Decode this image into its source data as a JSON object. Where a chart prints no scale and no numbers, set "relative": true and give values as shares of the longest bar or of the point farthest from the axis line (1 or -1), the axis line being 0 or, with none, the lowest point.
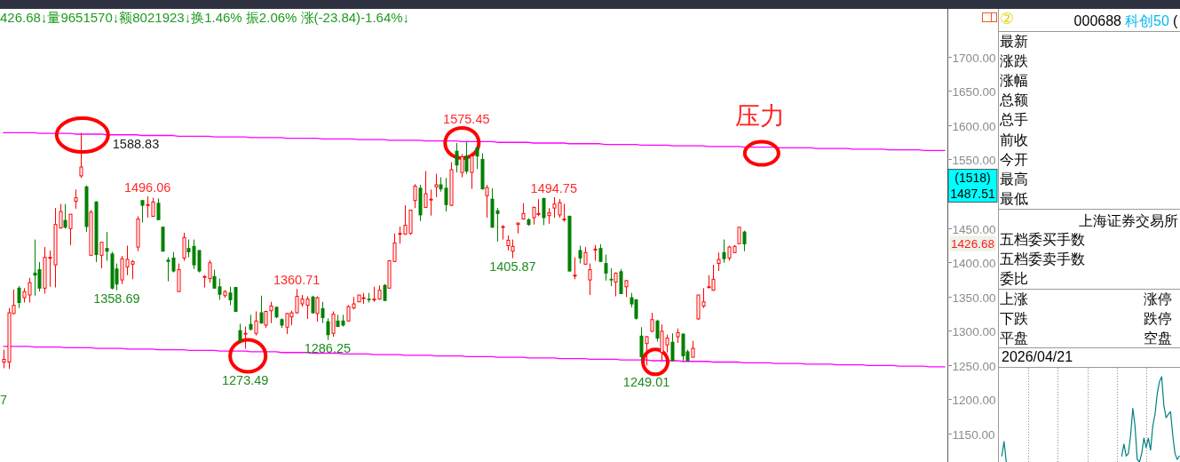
{
  "chart_data": [
    {
      "type": "candlestick",
      "title": "426.68↓量9651570↓额8021923↓换1.46% 振2.06% 涨(-23.84)-1.64%↓",
      "categories": [
        null,
        null,
        null,
        null,
        null,
        null,
        null,
        null,
        null,
        null,
        null,
        null,
        null,
        null,
        null,
        null,
        null,
        null,
        null,
        null,
        null,
        null,
        null,
        null,
        null,
        null,
        null,
        null,
        null,
        null,
        null,
        null,
        null,
        null,
        null,
        null,
        null,
        null,
        null,
        null,
        null,
        null,
        null,
        null,
        null,
        null,
        null,
        null,
        null,
        null,
        null,
        null,
        null,
        null,
        null,
        null,
        null,
        null,
        null,
        null,
        null,
        null,
        null,
        null,
        null,
        null,
        null,
        null,
        null,
        null,
        null,
        null,
        null,
        null,
        null,
        null,
        null,
        null,
        null,
        null,
        null,
        null,
        null,
        null,
        null,
        null,
        null,
        null,
        null,
        null,
        null,
        null,
        null,
        null,
        null,
        null,
        null,
        null,
        null,
        null,
        null,
        null,
        null,
        null,
        null,
        null,
        null,
        null,
        null,
        null,
        null,
        null,
        null,
        null,
        null,
        null,
        null,
        null,
        null,
        null,
        null,
        null,
        null,
        null,
        null,
        null,
        null,
        null,
        null,
        null,
        null,
        null,
        null,
        null,
        null,
        null,
        null,
        null,
        null,
        null,
        null,
        null,
        null,
        null,
        null,
        null,
        null,
        null,
        null,
        null,
        null,
        null,
        null,
        null,
        null,
        null,
        null,
        null,
        null,
        null,
        null,
        null,
        null,
        null,
        null,
        null,
        null,
        null,
        null,
        null,
        null,
        null,
        null,
        null,
        null,
        null,
        null,
        null,
        null,
        null,
        null,
        null,
        null,
        null
      ],
      "ohlc": [
        [
          1254,
          1272,
          1245,
          1258
        ],
        [
          1254,
          1333,
          1244,
          1326
        ],
        [
          1325,
          1360,
          1324,
          1337
        ],
        [
          1362,
          1365,
          1333,
          1341
        ],
        [
          1348,
          1362,
          1341,
          1357
        ],
        [
          1352,
          1377,
          1341,
          1370
        ],
        [
          1384,
          1433,
          1351,
          1381
        ],
        [
          1389,
          1400,
          1357,
          1362
        ],
        [
          1362,
          1422,
          1354,
          1407
        ],
        [
          1406,
          1417,
          1364,
          1407
        ],
        [
          1396,
          1479,
          1363,
          1455
        ],
        [
          1450,
          1485,
          1449,
          1474
        ],
        [
          1461,
          1485,
          1449,
          1451
        ],
        [
          1449,
          1470,
          1425,
          1470
        ],
        [
          1489,
          1506,
          1478,
          1494
        ],
        [
          1526,
          1588.83,
          1523,
          1539
        ],
        [
          1510,
          1512,
          1444,
          1452
        ],
        [
          1410,
          1476,
          1410,
          1473
        ],
        [
          1488,
          1489,
          1400,
          1411
        ],
        [
          1410,
          1429,
          1391,
          1429
        ],
        [
          1420,
          1444,
          1402,
          1416
        ],
        [
          1412,
          1415,
          1360,
          1362
        ],
        [
          1390,
          1398,
          1358.69,
          1368
        ],
        [
          1374,
          1409,
          1368,
          1405
        ],
        [
          1393,
          1424,
          1381,
          1404
        ],
        [
          1397,
          1403,
          1375,
          1401
        ],
        [
          1422,
          1467,
          1416,
          1463
        ],
        [
          1490,
          1491,
          1458,
          1483
        ],
        [
          1483,
          1496.06,
          1465,
          1484
        ],
        [
          1467,
          1494,
          1466,
          1488
        ],
        [
          1486,
          1493,
          1462,
          1462
        ],
        [
          1451,
          1452,
          1416,
          1416
        ],
        [
          1403,
          1407,
          1372,
          1401
        ],
        [
          1406,
          1415,
          1385,
          1387
        ],
        [
          1357,
          1398,
          1357,
          1389
        ],
        [
          1406,
          1443,
          1402,
          1436
        ],
        [
          1420,
          1433,
          1407,
          1415
        ],
        [
          1423,
          1433,
          1390,
          1396
        ],
        [
          1417,
          1417,
          1385,
          1387
        ],
        [
          1378,
          1381,
          1363,
          1379
        ],
        [
          1376,
          1403,
          1370,
          1399
        ],
        [
          1379,
          1389,
          1361,
          1362
        ],
        [
          1364,
          1376,
          1345,
          1353
        ],
        [
          1351,
          1359,
          1348,
          1357
        ],
        [
          1355,
          1364,
          1337,
          1345
        ],
        [
          1363,
          1364,
          1328,
          1328
        ],
        [
          1300,
          1310,
          1284,
          1285
        ],
        [
          1295,
          1306,
          1273.49,
          1296
        ],
        [
          1309,
          1323,
          1300,
          1302
        ],
        [
          1296,
          1328,
          1293,
          1314
        ],
        [
          1326,
          1351,
          1310,
          1311
        ],
        [
          1308,
          1329,
          1304,
          1328
        ],
        [
          1329,
          1342,
          1311,
          1336
        ],
        [
          1334,
          1335,
          1318,
          1320
        ],
        [
          1316,
          1318,
          1304,
          1308
        ],
        [
          1305,
          1326,
          1295,
          1325
        ],
        [
          1320,
          1329,
          1308,
          1326
        ],
        [
          1326,
          1360.71,
          1325,
          1350
        ],
        [
          1339,
          1352,
          1335,
          1346
        ],
        [
          1337,
          1350,
          1317,
          1346
        ],
        [
          1349,
          1351,
          1325,
          1326
        ],
        [
          1325,
          1350,
          1313,
          1348
        ],
        [
          1332,
          1342,
          1311,
          1319
        ],
        [
          1313,
          1318,
          1286.25,
          1294
        ],
        [
          1296,
          1328,
          1291,
          1324
        ],
        [
          1314,
          1323,
          1305,
          1306
        ],
        [
          1314,
          1323,
          1306,
          1308
        ],
        [
          1314,
          1337,
          1313,
          1335
        ],
        [
          1333,
          1349,
          1331,
          1339
        ],
        [
          1342,
          1352,
          1342,
          1352
        ],
        [
          1347,
          1355,
          1339,
          1348
        ],
        [
          1346,
          1355,
          1341,
          1345
        ],
        [
          1345,
          1364,
          1342,
          1346
        ],
        [
          1346,
          1366,
          1345,
          1359
        ],
        [
          1366,
          1368,
          1343,
          1344
        ],
        [
          1362,
          1403,
          1361,
          1402
        ],
        [
          1401,
          1442,
          1400,
          1428
        ],
        [
          1441,
          1452,
          1427,
          1442
        ],
        [
          1441,
          1483,
          1440,
          1454
        ],
        [
          1442,
          1476,
          1440,
          1476
        ],
        [
          1490,
          1514,
          1479,
          1511
        ],
        [
          1508,
          1513,
          1460,
          1469
        ],
        [
          1480,
          1533,
          1479,
          1500
        ],
        [
          1491,
          1506,
          1468,
          1492
        ],
        [
          1510,
          1529,
          1495,
          1513
        ],
        [
          1513,
          1524,
          1503,
          1507
        ],
        [
          1508,
          1523,
          1474,
          1484
        ],
        [
          1483,
          1546,
          1482,
          1535
        ],
        [
          1562,
          1574,
          1531,
          1542
        ],
        [
          1531,
          1558,
          1524,
          1554
        ],
        [
          1555,
          1575.45,
          1529,
          1533
        ],
        [
          1531,
          1560,
          1507,
          1555
        ],
        [
          1567,
          1568,
          1536,
          1555
        ],
        [
          1550,
          1559,
          1506,
          1507
        ],
        [
          1497,
          1513,
          1465,
          1509
        ],
        [
          1492,
          1508,
          1450,
          1451
        ],
        [
          1475,
          1479,
          1430,
          1471
        ],
        [
          1451,
          1454,
          1433,
          1452
        ],
        [
          1424,
          1439,
          1417,
          1432
        ],
        [
          1416,
          1433,
          1405.87,
          1423
        ],
        [
          1455,
          1458,
          1442,
          1457
        ],
        [
          1463,
          1486,
          1462,
          1471
        ],
        [
          1462,
          1464,
          1453,
          1455
        ],
        [
          1465,
          1481,
          1455,
          1480
        ],
        [
          1470,
          1492,
          1467,
          1471
        ],
        [
          1493,
          1494,
          1454,
          1465
        ],
        [
          1468,
          1479,
          1456,
          1472
        ],
        [
          1479,
          1494.75,
          1465,
          1485
        ],
        [
          1469,
          1492,
          1465,
          1487
        ],
        [
          1462,
          1485,
          1459,
          1463
        ],
        [
          1467,
          1468,
          1386,
          1387
        ],
        [
          1380,
          1407,
          1375,
          1381
        ],
        [
          1417,
          1424,
          1398,
          1406
        ],
        [
          1397,
          1422,
          1396,
          1414
        ],
        [
          1374,
          1398,
          1352,
          1389
        ],
        [
          1418,
          1425,
          1402,
          1419
        ],
        [
          1420,
          1426,
          1400,
          1401
        ],
        [
          1398,
          1411,
          1373,
          1384
        ],
        [
          1375,
          1391,
          1365,
          1374
        ],
        [
          1371,
          1385,
          1350,
          1384
        ],
        [
          1386,
          1390,
          1354,
          1354
        ],
        [
          1364,
          1374,
          1349,
          1373
        ],
        [
          1348,
          1355,
          1334,
          1339
        ],
        [
          1345,
          1346,
          1316,
          1318
        ],
        [
          1292,
          1305,
          1255,
          1262
        ],
        [
          1281,
          1292,
          1249.01,
          1291
        ],
        [
          1299,
          1326,
          1298,
          1316
        ],
        [
          1314,
          1316,
          1284,
          1289
        ],
        [
          1268,
          1309,
          1256,
          1299
        ],
        [
          1279,
          1294,
          1268,
          1289
        ],
        [
          1283,
          1296,
          1255,
          1256
        ],
        [
          1291,
          1303,
          1282,
          1297
        ],
        [
          1295,
          1295,
          1256,
          1263
        ],
        [
          1269,
          1272,
          1256,
          1256
        ],
        [
          1261,
          1285,
          1261,
          1274
        ],
        [
          1317,
          1352,
          1316,
          1352
        ],
        [
          1336,
          1362,
          1333,
          1342
        ],
        [
          1363,
          1381,
          1362,
          1364
        ],
        [
          1359,
          1396,
          1358,
          1375
        ],
        [
          1398,
          1414,
          1387,
          1404
        ],
        [
          1414,
          1433,
          1399,
          1405
        ],
        [
          1406,
          1424,
          1402,
          1422
        ],
        [
          1414,
          1425,
          1413,
          1423
        ],
        [
          1427,
          1451,
          1426,
          1451
        ],
        [
          1444,
          1446,
          1416,
          1426.68
        ],
        null,
        null,
        null,
        null,
        null,
        null,
        null,
        null,
        null,
        null,
        null,
        null,
        null,
        null,
        null,
        null,
        null,
        null,
        null,
        null,
        null,
        null,
        null,
        null,
        null,
        null,
        null,
        null,
        null,
        null,
        null,
        null,
        null,
        null,
        null,
        null,
        null,
        null,
        null
      ],
      "colors": [
        "#ff0000",
        "#ff0000",
        "#ff0000",
        "#008000",
        "#ff0000",
        "#ff0000",
        "#008000",
        "#008000",
        "#ff0000",
        "#ff0000",
        "#ff0000",
        "#ff0000",
        "#008000",
        "#ff0000",
        "#ff0000",
        "#ff0000",
        "#008000",
        "#ff0000",
        "#008000",
        "#ff0000",
        "#008000",
        "#008000",
        "#008000",
        "#ff0000",
        "#ff0000",
        "#ff0000",
        "#ff0000",
        "#008000",
        "#ff0000",
        "#ff0000",
        "#008000",
        "#008000",
        "#008000",
        "#008000",
        "#ff0000",
        "#ff0000",
        "#008000",
        "#008000",
        "#008000",
        "#ff0000",
        "#ff0000",
        "#008000",
        "#008000",
        "#ff0000",
        "#008000",
        "#008000",
        "#008000",
        "#ff0000",
        "#008000",
        "#ff0000",
        "#008000",
        "#ff0000",
        "#ff0000",
        "#008000",
        "#008000",
        "#ff0000",
        "#ff0000",
        "#ff0000",
        "#ff0000",
        "#ff0000",
        "#008000",
        "#ff0000",
        "#008000",
        "#008000",
        "#ff0000",
        "#008000",
        "#008000",
        "#ff0000",
        "#ff0000",
        "#ff0000",
        "#ff0000",
        "#008000",
        "#ff0000",
        "#ff0000",
        "#008000",
        "#ff0000",
        "#ff0000",
        "#ff0000",
        "#ff0000",
        "#ff0000",
        "#ff0000",
        "#008000",
        "#ff0000",
        "#ff0000",
        "#ff0000",
        "#008000",
        "#008000",
        "#ff0000",
        "#008000",
        "#ff0000",
        "#008000",
        "#ff0000",
        "#008000",
        "#008000",
        "#ff0000",
        "#008000",
        "#008000",
        "#ff0000",
        "#ff0000",
        "#ff0000",
        "#ff0000",
        "#ff0000",
        "#008000",
        "#ff0000",
        "#ff0000",
        "#008000",
        "#ff0000",
        "#ff0000",
        "#ff0000",
        "#ff0000",
        "#008000",
        "#ff0000",
        "#008000",
        "#ff0000",
        "#ff0000",
        "#ff0000",
        "#008000",
        "#008000",
        "#008000",
        "#ff0000",
        "#008000",
        "#ff0000",
        "#008000",
        "#008000",
        "#008000",
        "#ff0000",
        "#ff0000",
        "#008000",
        "#ff0000",
        "#ff0000",
        "#008000",
        "#ff0000",
        "#008000",
        "#008000",
        "#ff0000",
        "#ff0000",
        "#ff0000",
        "#ff0000",
        "#ff0000",
        "#ff0000",
        "#008000",
        "#ff0000",
        "#ff0000",
        "#ff0000",
        "#008000",
        null,
        null,
        null,
        null,
        null,
        null,
        null,
        null,
        null,
        null,
        null,
        null,
        null,
        null,
        null,
        null,
        null,
        null,
        null,
        null,
        null,
        null,
        null,
        null,
        null,
        null,
        null,
        null,
        null,
        null,
        null,
        null,
        null,
        null,
        null,
        null,
        null,
        null,
        null
      ],
      "series": [
        {
          "type": "line",
          "color": "#ff00ff",
          "values": [
            1589,
            1589,
            1589,
            1589,
            1589,
            1589,
            1589,
            1588,
            1588,
            1588,
            1588,
            1588,
            1588,
            1588,
            1587,
            1587,
            1587,
            1587,
            1587,
            1587,
            1586,
            1586,
            1586,
            1586,
            1586,
            1586,
            1586,
            1585,
            1585,
            1585,
            1585,
            1585,
            1585,
            1585,
            1584,
            1584,
            1584,
            1584,
            1584,
            1584,
            1584,
            1583,
            1583,
            1583,
            1583,
            1583,
            1583,
            1583,
            1582,
            1582,
            1582,
            1582,
            1582,
            1582,
            1582,
            1581,
            1581,
            1581,
            1581,
            1581,
            1581,
            1581,
            1580,
            1580,
            1580,
            1580,
            1580,
            1580,
            1580,
            1579,
            1579,
            1579,
            1579,
            1579,
            1579,
            1578,
            1578,
            1578,
            1578,
            1578,
            1578,
            1578,
            1577,
            1577,
            1577,
            1577,
            1577,
            1577,
            1577,
            1576,
            1576,
            1576,
            1576,
            1576,
            1576,
            1576,
            1575,
            1575,
            1575,
            1575,
            1575,
            1575,
            1575,
            1574,
            1574,
            1574,
            1574,
            1574,
            1574,
            1574,
            1573,
            1573,
            1573,
            1573,
            1573,
            1573,
            1573,
            1572,
            1572,
            1572,
            1572,
            1572,
            1572,
            1572,
            1571,
            1571,
            1571,
            1571,
            1571,
            1571,
            1570,
            1570,
            1570,
            1570,
            1570,
            1570,
            1570,
            1569,
            1569,
            1569,
            1569,
            1569,
            1569,
            1569,
            1568,
            1568,
            1568,
            1568,
            1568,
            1568,
            1568,
            1567,
            1567,
            1567,
            1567,
            1567,
            1567,
            1567,
            1566,
            1566,
            1566,
            1566,
            1566,
            1566,
            1566,
            1565,
            1565,
            1565,
            1565,
            1565,
            1565,
            1565,
            1564,
            1564,
            1564,
            1564,
            1564,
            1564,
            1564,
            1563,
            1563,
            1563,
            1563,
            1563
          ]
        },
        {
          "type": "line",
          "color": "#ff00ff",
          "values": [
            1277,
            1277,
            1277,
            1277,
            1277,
            1277,
            1276,
            1276,
            1276,
            1276,
            1276,
            1276,
            1275,
            1275,
            1275,
            1275,
            1275,
            1275,
            1274,
            1274,
            1274,
            1274,
            1274,
            1274,
            1273,
            1273,
            1273,
            1273,
            1273,
            1273,
            1272,
            1272,
            1272,
            1272,
            1272,
            1272,
            1271,
            1271,
            1271,
            1271,
            1271,
            1271,
            1270,
            1270,
            1270,
            1270,
            1270,
            1270,
            1269,
            1269,
            1269,
            1269,
            1269,
            1269,
            1268,
            1268,
            1268,
            1268,
            1268,
            1268,
            1267,
            1267,
            1267,
            1267,
            1267,
            1267,
            1266,
            1266,
            1266,
            1266,
            1266,
            1266,
            1265,
            1265,
            1265,
            1265,
            1265,
            1265,
            1264,
            1264,
            1264,
            1264,
            1264,
            1264,
            1263,
            1263,
            1263,
            1263,
            1263,
            1263,
            1262,
            1262,
            1262,
            1262,
            1262,
            1262,
            1261,
            1261,
            1261,
            1261,
            1261,
            1261,
            1260,
            1260,
            1260,
            1260,
            1260,
            1260,
            1259,
            1259,
            1259,
            1259,
            1259,
            1259,
            1258,
            1258,
            1258,
            1258,
            1258,
            1258,
            1257,
            1257,
            1257,
            1257,
            1257,
            1257,
            1256,
            1256,
            1256,
            1256,
            1256,
            1256,
            1255,
            1255,
            1255,
            1255,
            1255,
            1255,
            1254,
            1254,
            1254,
            1254,
            1254,
            1254,
            1253,
            1253,
            1253,
            1253,
            1253,
            1253,
            1252,
            1252,
            1252,
            1252,
            1252,
            1252,
            1251,
            1251,
            1251,
            1251,
            1251,
            1251,
            1250,
            1250,
            1250,
            1250,
            1250,
            1250,
            1249,
            1249,
            1249,
            1249,
            1249,
            1249,
            1248,
            1248,
            1248,
            1248,
            1248,
            1248,
            1247,
            1247,
            1247,
            1247
          ]
        }
      ],
      "ylim": [
        1108,
        1770
      ],
      "yticks": [
        {
          "value": 1150,
          "label": "1150.00"
        },
        {
          "value": 1200,
          "label": "1200.00"
        },
        {
          "value": 1250,
          "label": "1250.00"
        },
        {
          "value": 1300,
          "label": "1300.00"
        },
        {
          "value": 1350,
          "label": "1350.00"
        },
        {
          "value": 1400,
          "label": "1400.00"
        },
        {
          "value": 1450,
          "label": "1450.00"
        },
        {
          "value": 1550,
          "label": "1550.00"
        },
        {
          "value": 1600,
          "label": "1600.00"
        },
        {
          "value": 1650,
          "label": "1650.00"
        },
        {
          "value": 1700,
          "label": "1700.00"
        }
      ],
      "tick_labels": "y",
      "annotations": [
        {
          "text": "1588.83",
          "y": 1588.83
        },
        {
          "text": "1496.06",
          "y": 1496.06
        },
        {
          "text": "1358.69",
          "y": 1358.69
        },
        {
          "text": "1273.49",
          "y": 1273.49
        },
        {
          "text": "1360.71",
          "y": 1360.71
        },
        {
          "text": "1286.25",
          "y": 1286.25
        },
        {
          "text": "1575.45",
          "y": 1575.45
        },
        {
          "text": "1494.75",
          "y": 1494.75
        },
        {
          "text": "1405.87",
          "y": 1405.87
        },
        {
          "text": "1249.01",
          "y": 1249.01
        },
        "1426.68",
        "1487.51",
        "(1518)",
        "压力",
        "7"
      ]
    },
    {
      "type": "other",
      "annotations": [
        "②",
        "000688",
        "科创50",
        "(",
        "最新",
        "涨跌",
        "涨幅",
        "总额",
        "总手",
        "前收",
        "今开",
        "最高",
        "最低",
        "上海证券交易所",
        "五档委买手数",
        "五档委卖手数",
        "委比",
        "上涨",
        "涨停",
        "下跌",
        "跌停",
        "平盘",
        "空盘",
        "2026/04/21"
      ]
    },
    {
      "type": "line",
      "relative": true,
      "categories": [
        null,
        null,
        null,
        null,
        null,
        null,
        null,
        null,
        null,
        null,
        null,
        null,
        null,
        null,
        null,
        null,
        null,
        null,
        null,
        null,
        null,
        null,
        null,
        null,
        null,
        null,
        null,
        null,
        null,
        null,
        null,
        null,
        null,
        null,
        null,
        null,
        null,
        null,
        null,
        null,
        null,
        null,
        null,
        null,
        null,
        null,
        null,
        null,
        null,
        null,
        null,
        null,
        null,
        null,
        null,
        null,
        null,
        null,
        null,
        null,
        null,
        null,
        null,
        null,
        null,
        null,
        null,
        null,
        null,
        null,
        null,
        null,
        null,
        null,
        null,
        null,
        null,
        null,
        null,
        null,
        null
      ],
      "series": [
        {
          "color": "#008080",
          "values": [
            0.07,
            0.24,
            0,
            null,
            null,
            null,
            null,
            null,
            null,
            null,
            null,
            null,
            null,
            null,
            null,
            null,
            null,
            null,
            null,
            null,
            null,
            null,
            null,
            null,
            null,
            null,
            null,
            null,
            null,
            null,
            null,
            null,
            null,
            null,
            null,
            null,
            null,
            null,
            null,
            null,
            null,
            null,
            null,
            null,
            null,
            null,
            null,
            null,
            null,
            null,
            null,
            null,
            null,
            null,
            null,
            null,
            null,
            null,
            null,
            null,
            null,
            null,
            null,
            null,
            null,
            null,
            null,
            null,
            null,
            null,
            null,
            null,
            null,
            null,
            null,
            null,
            null,
            null,
            null,
            null,
            null
          ]
        },
        {
          "color": "#008080",
          "values": [
            null,
            null,
            null,
            null,
            null,
            null,
            null,
            null,
            null,
            null,
            null,
            null,
            null,
            null,
            null,
            null,
            null,
            null,
            null,
            null,
            null,
            null,
            null,
            null,
            null,
            null,
            null,
            null,
            null,
            null,
            null,
            null,
            null,
            null,
            null,
            null,
            null,
            null,
            null,
            null,
            null,
            null,
            null,
            null,
            null,
            null,
            null,
            null,
            null,
            null,
            null,
            null,
            null,
            null,
            0.07,
            0.21,
            0.07,
            0.1,
            0.31,
            0.63,
            0.42,
            0.03,
            0,
            0.1,
            0.28,
            0.17,
            0.28,
            0.14,
            0.42,
            0.56,
            0.8,
            0.94,
            1,
            0.66,
            0.52,
            0.56,
            0.59,
            0.31,
            0.1,
            0.03,
            0.07
          ]
        }
      ],
      "grid": "x",
      "tick_labels": false
    }
  ]
}
